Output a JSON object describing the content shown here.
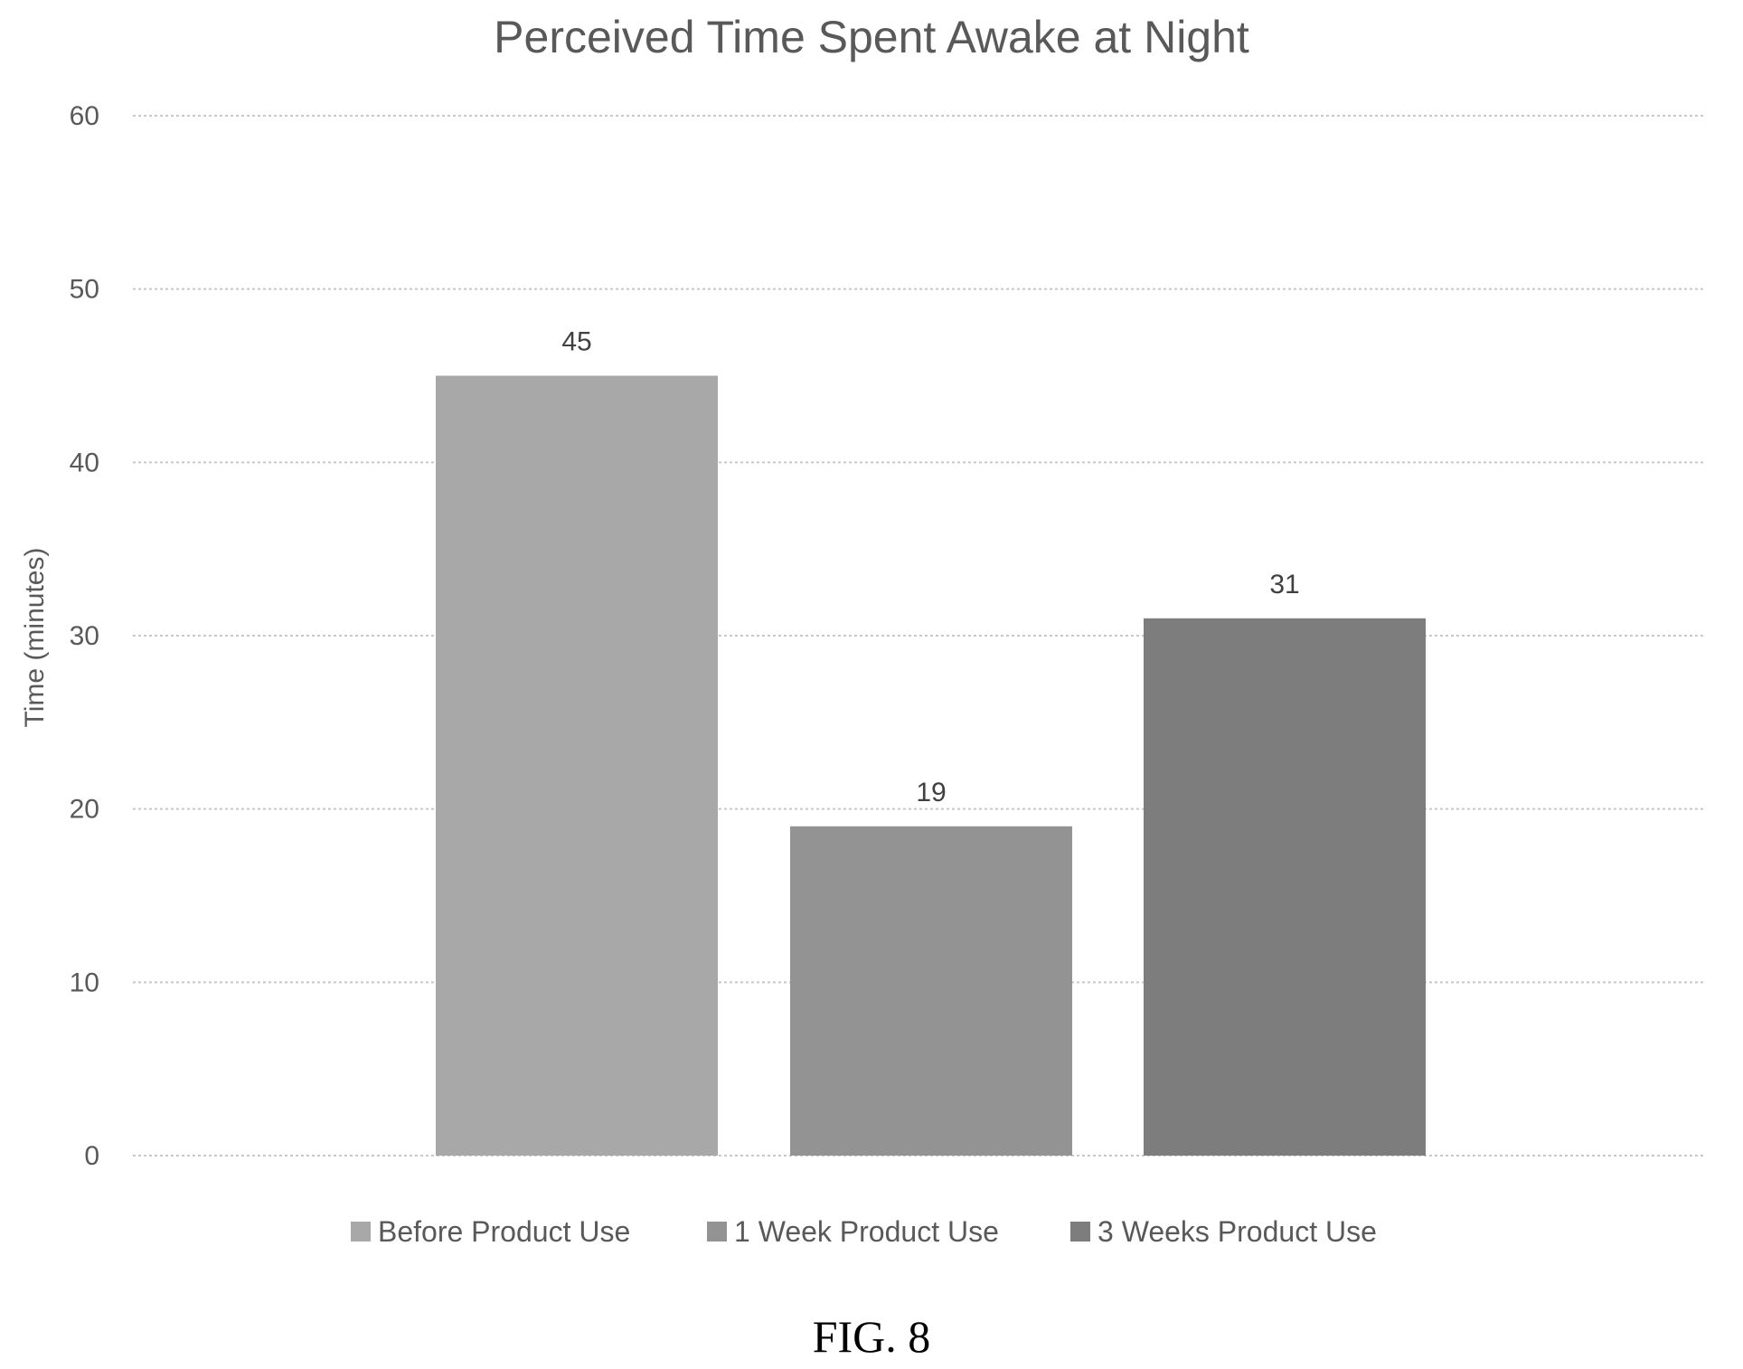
{
  "chart_data": {
    "type": "bar",
    "title": "Perceived Time Spent Awake at Night",
    "ylabel": "Time (minutes)",
    "xlabel": "",
    "ylim": [
      0,
      60
    ],
    "yticks": [
      0,
      10,
      20,
      30,
      40,
      50,
      60
    ],
    "grid": true,
    "legend_position": "bottom",
    "series": [
      {
        "name": "Before Product Use",
        "values": [
          45
        ],
        "color": "#a8a8a8"
      },
      {
        "name": "1 Week Product Use",
        "values": [
          19
        ],
        "color": "#939393"
      },
      {
        "name": "3 Weeks Product Use",
        "values": [
          31
        ],
        "color": "#7d7d7d"
      }
    ]
  },
  "caption": "FIG. 8"
}
